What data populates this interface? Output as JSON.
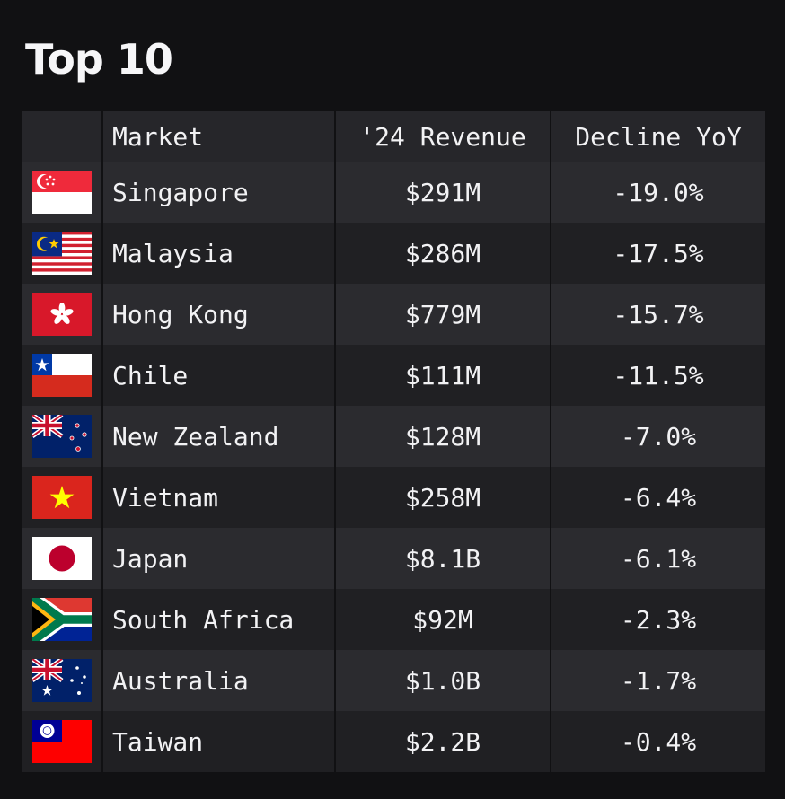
{
  "title": "Top 10",
  "chart_data": {
    "type": "table",
    "columns": [
      "",
      "Market",
      "'24 Revenue",
      "Decline YoY"
    ],
    "rows": [
      {
        "market": "Singapore",
        "revenue": "$291M",
        "decline": "-19.0%",
        "flag_icon": "singapore-flag-icon"
      },
      {
        "market": "Malaysia",
        "revenue": "$286M",
        "decline": "-17.5%",
        "flag_icon": "malaysia-flag-icon"
      },
      {
        "market": "Hong Kong",
        "revenue": "$779M",
        "decline": "-15.7%",
        "flag_icon": "hong-kong-flag-icon"
      },
      {
        "market": "Chile",
        "revenue": "$111M",
        "decline": "-11.5%",
        "flag_icon": "chile-flag-icon"
      },
      {
        "market": "New Zealand",
        "revenue": "$128M",
        "decline": "-7.0%",
        "flag_icon": "new-zealand-flag-icon"
      },
      {
        "market": "Vietnam",
        "revenue": "$258M",
        "decline": "-6.4%",
        "flag_icon": "vietnam-flag-icon"
      },
      {
        "market": "Japan",
        "revenue": "$8.1B",
        "decline": "-6.1%",
        "flag_icon": "japan-flag-icon"
      },
      {
        "market": "South Africa",
        "revenue": "$92M",
        "decline": "-2.3%",
        "flag_icon": "south-africa-flag-icon"
      },
      {
        "market": "Australia",
        "revenue": "$1.0B",
        "decline": "-1.7%",
        "flag_icon": "australia-flag-icon"
      },
      {
        "market": "Taiwan",
        "revenue": "$2.2B",
        "decline": "-0.4%",
        "flag_icon": "taiwan-flag-icon"
      }
    ]
  },
  "colors": {
    "background": "#111113",
    "header_row": "#26262a",
    "row_odd": "#2b2b2f",
    "row_even": "#202023",
    "text": "#f2f2f4"
  }
}
